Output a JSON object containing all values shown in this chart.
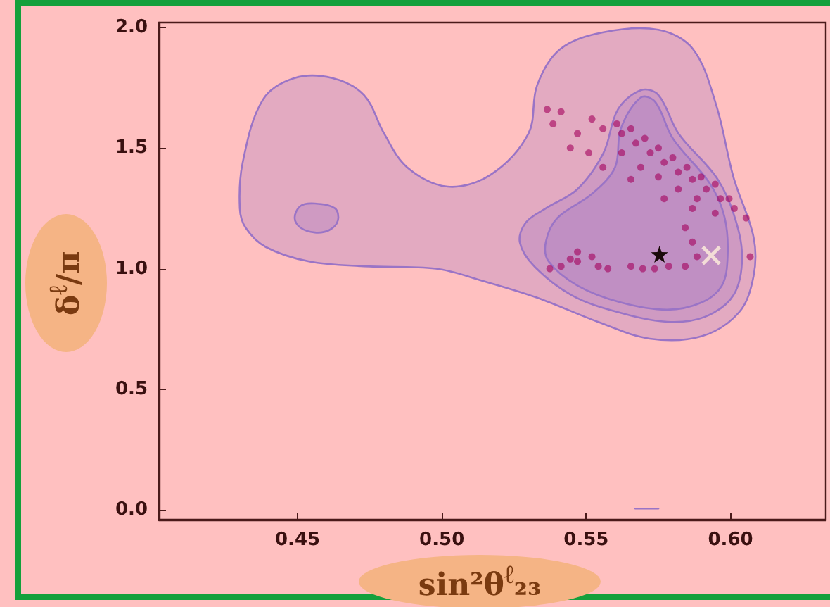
{
  "chart_data": {
    "type": "scatter",
    "xlabel": "sin²θ$^{ℓ}$₂₃",
    "ylabel": "δ$^{ℓ}$/π",
    "xlim": [
      0.402,
      0.633
    ],
    "ylim": [
      -0.04,
      2.02
    ],
    "xticks": [
      0.45,
      {
        "value": 0.5,
        "label": "0.50"
      },
      0.55,
      {
        "value": 0.6,
        "label": "0.60"
      }
    ],
    "yticks": [
      {
        "value": 0,
        "label": "0.0"
      },
      0.5,
      {
        "value": 1,
        "label": "1.0"
      },
      1.5,
      {
        "value": 2,
        "label": "2.0"
      }
    ],
    "grid": false,
    "legend": false,
    "series": [
      {
        "type": "area",
        "color": "#9a74c6",
        "x": [
          0.43,
          0.431,
          0.438,
          0.449,
          0.462,
          0.473,
          0.48,
          0.488,
          0.502,
          0.517,
          0.53,
          0.533,
          0.541,
          0.556,
          0.575,
          0.587,
          0.595,
          0.601,
          0.608,
          0.608,
          0.603,
          0.59,
          0.572,
          0.554,
          0.533,
          0.514,
          0.498,
          0.473,
          0.454,
          0.439,
          0.432
        ],
        "values": [
          1.25,
          1.44,
          1.7,
          1.79,
          1.79,
          1.72,
          1.56,
          1.42,
          1.34,
          1.39,
          1.56,
          1.76,
          1.91,
          1.98,
          1.99,
          1.91,
          1.68,
          1.38,
          1.13,
          0.97,
          0.82,
          0.72,
          0.71,
          0.78,
          0.88,
          0.95,
          1.0,
          1.01,
          1.03,
          1.09,
          1.17
        ]
      },
      {
        "type": "area",
        "color": "#9a74c6",
        "x": [
          0.527,
          0.529,
          0.536,
          0.547,
          0.556,
          0.561,
          0.569,
          0.575,
          0.582,
          0.595,
          0.601,
          0.604,
          0.601,
          0.591,
          0.578,
          0.561,
          0.545,
          0.532
        ],
        "values": [
          1.11,
          1.19,
          1.25,
          1.33,
          1.48,
          1.66,
          1.74,
          1.72,
          1.56,
          1.38,
          1.23,
          1.05,
          0.89,
          0.8,
          0.78,
          0.82,
          0.89,
          1.01
        ]
      },
      {
        "type": "area",
        "color": "#9a74c6",
        "x": [
          0.536,
          0.54,
          0.552,
          0.56,
          0.562,
          0.569,
          0.574,
          0.58,
          0.593,
          0.598,
          0.599,
          0.597,
          0.59,
          0.578,
          0.562,
          0.547,
          0.537
        ],
        "values": [
          1.11,
          1.21,
          1.31,
          1.42,
          1.58,
          1.71,
          1.69,
          1.54,
          1.35,
          1.21,
          1.05,
          0.93,
          0.86,
          0.83,
          0.86,
          0.93,
          1.03
        ]
      },
      {
        "type": "area",
        "color": "#9a74c6",
        "x": [
          0.449,
          0.451,
          0.456,
          0.463,
          0.464,
          0.461,
          0.456,
          0.451
        ],
        "values": [
          1.21,
          1.26,
          1.27,
          1.25,
          1.2,
          1.16,
          1.15,
          1.17
        ]
      },
      {
        "type": "line",
        "color": "#9a74c6",
        "x": [
          0.567,
          0.575
        ],
        "values": [
          0.006,
          0.006
        ]
      },
      {
        "color": "#a3005c",
        "marker": "circle",
        "x": [
          0.5365,
          0.5413,
          0.5385,
          0.547,
          0.552,
          0.5445,
          0.5509,
          0.5558,
          0.5623,
          0.5672,
          0.5722,
          0.577,
          0.5819,
          0.5868,
          0.5916,
          0.5965,
          0.6013,
          0.6054,
          0.5606,
          0.5655,
          0.5703,
          0.575,
          0.58,
          0.5849,
          0.5898,
          0.5947,
          0.5995,
          0.5623,
          0.5689,
          0.575,
          0.5819,
          0.5884,
          0.5947,
          0.5558,
          0.5655,
          0.577,
          0.5868,
          0.5843,
          0.5868,
          0.6068,
          0.5884,
          0.5374,
          0.5413,
          0.547,
          0.547,
          0.552,
          0.5542,
          0.5575,
          0.5445,
          0.5696,
          0.5737,
          0.5786,
          0.5655,
          0.5843
        ],
        "values": [
          1.66,
          1.65,
          1.6,
          1.56,
          1.62,
          1.5,
          1.48,
          1.58,
          1.56,
          1.52,
          1.48,
          1.44,
          1.4,
          1.37,
          1.33,
          1.29,
          1.25,
          1.21,
          1.6,
          1.58,
          1.54,
          1.5,
          1.46,
          1.42,
          1.38,
          1.35,
          1.29,
          1.48,
          1.42,
          1.38,
          1.33,
          1.29,
          1.23,
          1.42,
          1.37,
          1.29,
          1.25,
          1.17,
          1.11,
          1.05,
          1.05,
          1.0,
          1.01,
          1.03,
          1.07,
          1.05,
          1.01,
          1.0,
          1.04,
          1.0,
          1.0,
          1.01,
          1.01,
          1.01
        ]
      },
      {
        "color": "#1a0a0a",
        "marker": "star",
        "x": [
          0.5754
        ],
        "values": [
          1.06
        ]
      },
      {
        "color": "#fff0dc",
        "marker": "cross",
        "x": [
          0.5933
        ],
        "values": [
          1.055
        ]
      }
    ]
  }
}
